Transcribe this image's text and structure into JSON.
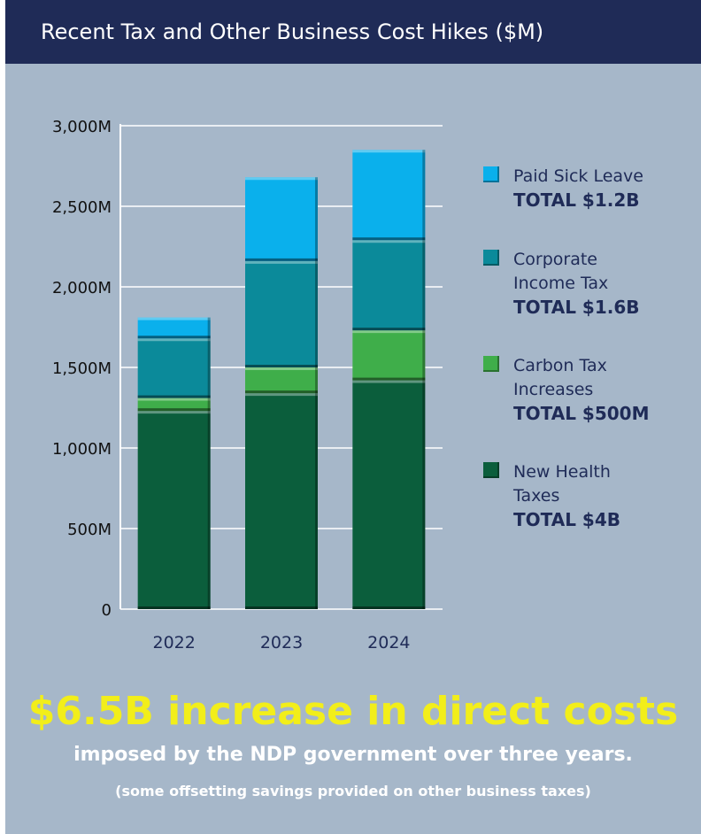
{
  "header": {
    "title": "Recent Tax and Other Business Cost Hikes ($M)"
  },
  "chart_data": {
    "type": "bar",
    "stacked": true,
    "categories": [
      "2022",
      "2023",
      "2024"
    ],
    "y_ticks": [
      "0",
      "500M",
      "1,000M",
      "1,500M",
      "2,000M",
      "2,500M",
      "3,000M"
    ],
    "ylim": [
      0,
      3000
    ],
    "grid": true,
    "legend_position": "right",
    "series": [
      {
        "name": "New Health Taxes",
        "color": "#0b5e3c",
        "values": [
          1230,
          1340,
          1420
        ]
      },
      {
        "name": "Carbon Tax Increases",
        "color": "#3fae4a",
        "values": [
          80,
          160,
          310
        ]
      },
      {
        "name": "Corporate Income Tax",
        "color": "#0b8a9a",
        "values": [
          370,
          660,
          560
        ]
      },
      {
        "name": "Paid Sick Leave",
        "color": "#0ab0ec",
        "values": [
          130,
          520,
          560
        ]
      }
    ]
  },
  "legend": {
    "items": [
      {
        "label": "Paid Sick Leave",
        "total": "TOTAL $1.2B",
        "color": "#0ab0ec"
      },
      {
        "label": "Corporate Income Tax",
        "total": "TOTAL $1.6B",
        "color": "#0b8a9a"
      },
      {
        "label": "Carbon Tax Increases",
        "total": "TOTAL $500M",
        "color": "#3fae4a"
      },
      {
        "label": "New Health Taxes",
        "total": "TOTAL  $4B",
        "color": "#0b5e3c"
      }
    ]
  },
  "footer": {
    "headline": "$6.5B increase in direct costs",
    "subhead": "imposed by the NDP government over three years.",
    "note": "(some offsetting savings provided on other business taxes)"
  }
}
